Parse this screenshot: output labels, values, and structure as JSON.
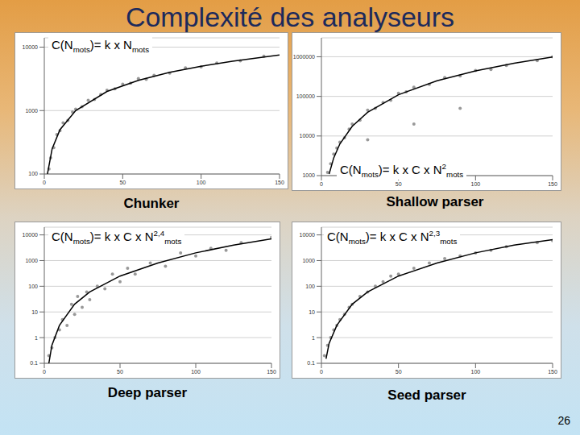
{
  "title": "Complexité des analyseurs",
  "page_number": 26,
  "chart_data": [
    {
      "type": "scatter",
      "title": "Chunker",
      "annotation": "C(Nmots)= k x Nmots",
      "log": "y",
      "grid": true,
      "xlim": [
        0,
        150
      ],
      "xticks": [
        0,
        50,
        100,
        150
      ],
      "ylim": [
        100,
        14000
      ],
      "yticks": [
        100,
        1000,
        10000
      ],
      "series": [
        {
          "type": "scatter",
          "marker": "circle",
          "color": "#999999",
          "x": [
            3,
            4,
            6,
            8,
            10,
            12,
            15,
            18,
            20,
            24,
            28,
            32,
            36,
            40,
            45,
            50,
            55,
            60,
            65,
            70,
            80,
            90,
            100,
            110,
            125,
            140
          ],
          "values": [
            120,
            180,
            260,
            420,
            480,
            640,
            700,
            950,
            1050,
            1150,
            1450,
            1500,
            1800,
            2100,
            2200,
            2600,
            2700,
            3200,
            3100,
            3600,
            3900,
            4700,
            4900,
            5600,
            6100,
            7200
          ]
        },
        {
          "type": "line",
          "line_style": "solid",
          "color": "#000000",
          "x": [
            2,
            5,
            10,
            20,
            40,
            60,
            80,
            100,
            120,
            150
          ],
          "values": [
            100,
            250,
            500,
            1000,
            2000,
            3000,
            4000,
            5000,
            6000,
            7500
          ]
        }
      ]
    },
    {
      "type": "scatter",
      "title": "Shallow parser",
      "annotation": "C(Nmots)= k x C x N2mots",
      "log": "y",
      "grid": true,
      "xlim": [
        0,
        150
      ],
      "xticks": [
        0,
        50,
        100,
        150
      ],
      "ylim": [
        1000,
        3000000
      ],
      "yticks": [
        1000,
        10000,
        100000,
        1000000
      ],
      "series": [
        {
          "type": "scatter",
          "marker": "circle",
          "color": "#999999",
          "x": [
            4,
            6,
            8,
            10,
            12,
            15,
            18,
            20,
            25,
            30,
            30,
            35,
            40,
            45,
            50,
            55,
            60,
            60,
            70,
            80,
            90,
            90,
            100,
            110,
            120,
            140,
            150
          ],
          "values": [
            1200,
            2000,
            3500,
            5000,
            7000,
            9000,
            15000,
            20000,
            25000,
            45000,
            8000,
            50000,
            70000,
            80000,
            120000,
            130000,
            170000,
            20000,
            200000,
            300000,
            330000,
            50000,
            450000,
            480000,
            600000,
            800000,
            1000000
          ]
        },
        {
          "type": "line",
          "line_style": "solid",
          "color": "#000000",
          "x": [
            5,
            8,
            12,
            20,
            30,
            50,
            75,
            100,
            125,
            150
          ],
          "values": [
            1100,
            2816,
            6336,
            17600,
            39600,
            110000,
            247500,
            440000,
            687500,
            990000
          ]
        }
      ]
    },
    {
      "type": "scatter",
      "title": "Deep parser",
      "annotation": "C(Nmots)= k x C x N2,4mots",
      "log": "y",
      "grid": true,
      "xlim": [
        0,
        150
      ],
      "xticks": [
        0,
        50,
        100,
        150
      ],
      "ylim": [
        0.1,
        20000
      ],
      "yticks": [
        0.1,
        1,
        10,
        100,
        1000,
        10000
      ],
      "series": [
        {
          "type": "scatter",
          "marker": "circle",
          "color": "#999999",
          "x": [
            3,
            5,
            7,
            10,
            12,
            15,
            18,
            20,
            22,
            25,
            28,
            30,
            35,
            40,
            45,
            50,
            55,
            60,
            70,
            80,
            90,
            100,
            110,
            120,
            130,
            150
          ],
          "values": [
            0.2,
            0.4,
            1,
            2,
            5,
            3,
            20,
            8,
            40,
            15,
            60,
            30,
            100,
            80,
            300,
            150,
            500,
            300,
            800,
            600,
            2000,
            1500,
            3000,
            2500,
            5000,
            8000
          ]
        },
        {
          "type": "line",
          "line_style": "solid",
          "color": "#000000",
          "x": [
            3,
            5,
            10,
            20,
            30,
            50,
            75,
            100,
            125,
            150
          ],
          "values": [
            0.1,
            0.5,
            3,
            20,
            60,
            250,
            800,
            2000,
            4000,
            7000
          ]
        }
      ]
    },
    {
      "type": "scatter",
      "title": "Seed parser",
      "annotation": "C(Nmots)= k x C x N2,3mots",
      "log": "y",
      "grid": true,
      "xlim": [
        0,
        150
      ],
      "xticks": [
        0,
        50,
        100,
        150
      ],
      "ylim": [
        0.1,
        20000
      ],
      "yticks": [
        0.1,
        1,
        10,
        100,
        1000,
        10000
      ],
      "series": [
        {
          "type": "scatter",
          "marker": "circle",
          "color": "#999999",
          "x": [
            2,
            4,
            6,
            8,
            10,
            12,
            15,
            18,
            20,
            25,
            30,
            35,
            40,
            45,
            50,
            60,
            70,
            80,
            90,
            100,
            110,
            120,
            140,
            150
          ],
          "values": [
            0.2,
            0.5,
            1,
            2,
            3,
            5,
            8,
            15,
            20,
            40,
            60,
            100,
            150,
            250,
            300,
            500,
            800,
            1200,
            1500,
            2000,
            2500,
            3500,
            5000,
            6000
          ]
        },
        {
          "type": "line",
          "line_style": "solid",
          "color": "#000000",
          "x": [
            3,
            5,
            10,
            20,
            30,
            50,
            75,
            100,
            125,
            150
          ],
          "values": [
            0.15,
            0.6,
            3,
            20,
            60,
            250,
            800,
            2000,
            4000,
            6500
          ]
        }
      ]
    }
  ]
}
